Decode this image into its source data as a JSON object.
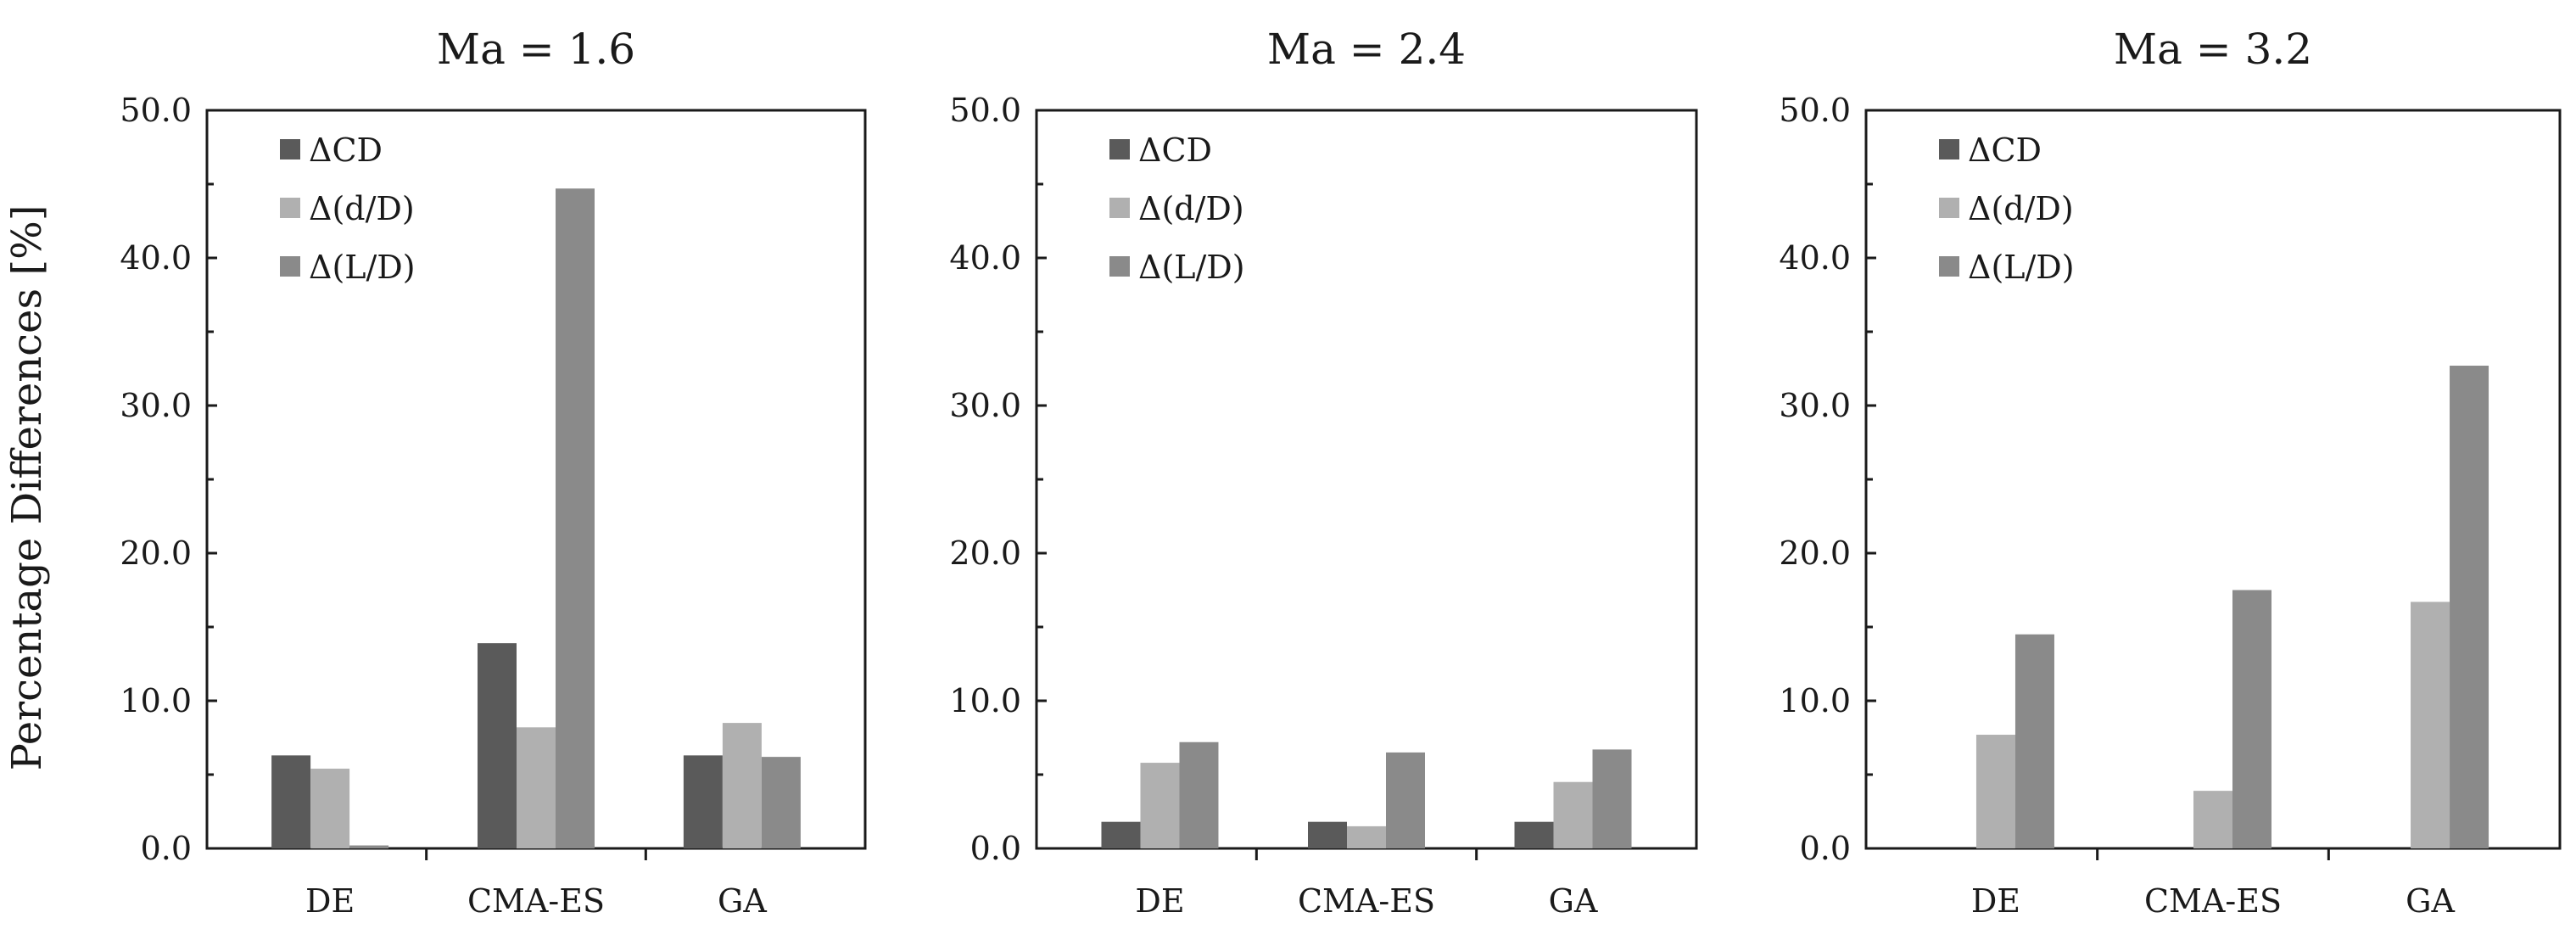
{
  "ylabel": "Percentage Differences [%]",
  "chart_data": [
    {
      "type": "bar",
      "title": "Ma = 1.6",
      "categories": [
        "DE",
        "CMA-ES",
        "GA"
      ],
      "ylim": [
        0,
        50
      ],
      "yticks": [
        "0.0",
        "10.0",
        "20.0",
        "30.0",
        "40.0",
        "50.0"
      ],
      "legend_position": "top-left",
      "series": [
        {
          "name": "ΔCD",
          "color": "#5a5a5a",
          "values": [
            6.3,
            13.9,
            6.3
          ]
        },
        {
          "name": "Δ(d/D)",
          "color": "#b0b0b0",
          "values": [
            5.4,
            8.2,
            8.5
          ]
        },
        {
          "name": "Δ(L/D)",
          "color": "#8a8a8a",
          "values": [
            0.2,
            44.7,
            6.2
          ]
        }
      ]
    },
    {
      "type": "bar",
      "title": "Ma = 2.4",
      "categories": [
        "DE",
        "CMA-ES",
        "GA"
      ],
      "ylim": [
        0,
        50
      ],
      "yticks": [
        "0.0",
        "10.0",
        "20.0",
        "30.0",
        "40.0",
        "50.0"
      ],
      "legend_position": "top-left",
      "series": [
        {
          "name": "ΔCD",
          "color": "#5a5a5a",
          "values": [
            1.8,
            1.8,
            1.8
          ]
        },
        {
          "name": "Δ(d/D)",
          "color": "#b0b0b0",
          "values": [
            5.8,
            1.5,
            4.5
          ]
        },
        {
          "name": "Δ(L/D)",
          "color": "#8a8a8a",
          "values": [
            7.2,
            6.5,
            6.7
          ]
        }
      ]
    },
    {
      "type": "bar",
      "title": "Ma = 3.2",
      "categories": [
        "DE",
        "CMA-ES",
        "GA"
      ],
      "ylim": [
        0,
        50
      ],
      "yticks": [
        "0.0",
        "10.0",
        "20.0",
        "30.0",
        "40.0",
        "50.0"
      ],
      "legend_position": "top-left",
      "series": [
        {
          "name": "ΔCD",
          "color": "#5a5a5a",
          "values": [
            0.0,
            0.0,
            0.0
          ]
        },
        {
          "name": "Δ(d/D)",
          "color": "#b0b0b0",
          "values": [
            7.7,
            3.9,
            16.7
          ]
        },
        {
          "name": "Δ(L/D)",
          "color": "#8a8a8a",
          "values": [
            14.5,
            17.5,
            32.7
          ]
        }
      ]
    }
  ]
}
